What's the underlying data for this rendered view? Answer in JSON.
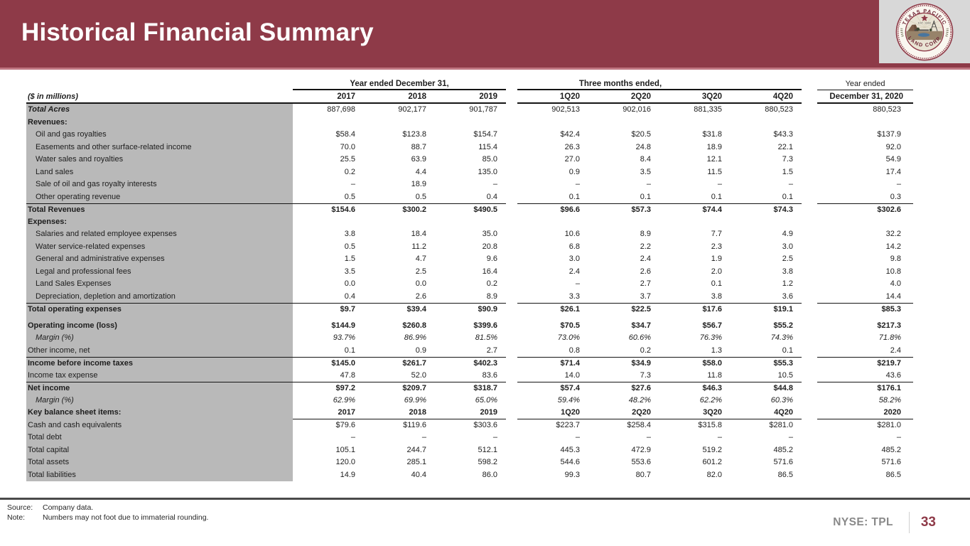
{
  "header": {
    "title": "Historical Financial Summary",
    "logo": {
      "arc_top": "TEXAS PACIFIC",
      "arc_bottom": "LAND CORP",
      "est": "EST. 1888"
    }
  },
  "table": {
    "units_label": "($ in millions)",
    "groups": [
      {
        "label": "Year ended December 31,",
        "cols": [
          "2017",
          "2018",
          "2019"
        ]
      },
      {
        "label": "Three months ended,",
        "cols": [
          "1Q20",
          "2Q20",
          "3Q20",
          "4Q20"
        ]
      },
      {
        "label_line1": "Year ended",
        "label_line2": "December 31, 2020"
      }
    ],
    "rows": [
      {
        "type": "acres",
        "label": "Total Acres",
        "values": [
          "887,698",
          "902,177",
          "901,787",
          "902,513",
          "902,016",
          "881,335",
          "880,523",
          "880,523"
        ]
      },
      {
        "type": "section",
        "label": "Revenues:",
        "values": [
          "",
          "",
          "",
          "",
          "",
          "",
          "",
          ""
        ]
      },
      {
        "type": "item",
        "label": "Oil and gas royalties",
        "values": [
          "$58.4",
          "$123.8",
          "$154.7",
          "$42.4",
          "$20.5",
          "$31.8",
          "$43.3",
          "$137.9"
        ]
      },
      {
        "type": "item",
        "label": "Easements and other surface-related income",
        "values": [
          "70.0",
          "88.7",
          "115.4",
          "26.3",
          "24.8",
          "18.9",
          "22.1",
          "92.0"
        ]
      },
      {
        "type": "item",
        "label": "Water sales and royalties",
        "values": [
          "25.5",
          "63.9",
          "85.0",
          "27.0",
          "8.4",
          "12.1",
          "7.3",
          "54.9"
        ]
      },
      {
        "type": "item",
        "label": "Land sales",
        "values": [
          "0.2",
          "4.4",
          "135.0",
          "0.9",
          "3.5",
          "11.5",
          "1.5",
          "17.4"
        ]
      },
      {
        "type": "item",
        "label": "Sale of oil and gas royalty interests",
        "values": [
          "–",
          "18.9",
          "–",
          "–",
          "–",
          "–",
          "–",
          "–"
        ]
      },
      {
        "type": "item",
        "label": "Other operating revenue",
        "values": [
          "0.5",
          "0.5",
          "0.4",
          "0.1",
          "0.1",
          "0.1",
          "0.1",
          "0.3"
        ]
      },
      {
        "type": "total",
        "label": "Total Revenues",
        "values": [
          "$154.6",
          "$300.2",
          "$490.5",
          "$96.6",
          "$57.3",
          "$74.4",
          "$74.3",
          "$302.6"
        ]
      },
      {
        "type": "section",
        "label": "Expenses:",
        "values": [
          "",
          "",
          "",
          "",
          "",
          "",
          "",
          ""
        ]
      },
      {
        "type": "item",
        "label": "Salaries and related employee expenses",
        "values": [
          "3.8",
          "18.4",
          "35.0",
          "10.6",
          "8.9",
          "7.7",
          "4.9",
          "32.2"
        ]
      },
      {
        "type": "item",
        "label": "Water service-related expenses",
        "values": [
          "0.5",
          "11.2",
          "20.8",
          "6.8",
          "2.2",
          "2.3",
          "3.0",
          "14.2"
        ]
      },
      {
        "type": "item",
        "label": "General and administrative expenses",
        "values": [
          "1.5",
          "4.7",
          "9.6",
          "3.0",
          "2.4",
          "1.9",
          "2.5",
          "9.8"
        ]
      },
      {
        "type": "item",
        "label": "Legal and professional fees",
        "values": [
          "3.5",
          "2.5",
          "16.4",
          "2.4",
          "2.6",
          "2.0",
          "3.8",
          "10.8"
        ]
      },
      {
        "type": "item",
        "label": "Land Sales Expenses",
        "values": [
          "0.0",
          "0.0",
          "0.2",
          "–",
          "2.7",
          "0.1",
          "1.2",
          "4.0"
        ]
      },
      {
        "type": "item",
        "label": "Depreciation, depletion and amortization",
        "values": [
          "0.4",
          "2.6",
          "8.9",
          "3.3",
          "3.7",
          "3.8",
          "3.6",
          "14.4"
        ]
      },
      {
        "type": "total",
        "label": "Total operating expenses",
        "values": [
          "$9.7",
          "$39.4",
          "$90.9",
          "$26.1",
          "$22.5",
          "$17.6",
          "$19.1",
          "$85.3"
        ]
      },
      {
        "type": "spacer"
      },
      {
        "type": "bold",
        "label": "Operating income (loss)",
        "values": [
          "$144.9",
          "$260.8",
          "$399.6",
          "$70.5",
          "$34.7",
          "$56.7",
          "$55.2",
          "$217.3"
        ]
      },
      {
        "type": "margin",
        "label": "Margin (%)",
        "values": [
          "93.7%",
          "86.9%",
          "81.5%",
          "73.0%",
          "60.6%",
          "76.3%",
          "74.3%",
          "71.8%"
        ]
      },
      {
        "type": "plain",
        "label": "Other income, net",
        "values": [
          "0.1",
          "0.9",
          "2.7",
          "0.8",
          "0.2",
          "1.3",
          "0.1",
          "2.4"
        ]
      },
      {
        "type": "total",
        "label": "Income before income taxes",
        "values": [
          "$145.0",
          "$261.7",
          "$402.3",
          "$71.4",
          "$34.9",
          "$58.0",
          "$55.3",
          "$219.7"
        ]
      },
      {
        "type": "plain",
        "label": "Income tax expense",
        "values": [
          "47.8",
          "52.0",
          "83.6",
          "14.0",
          "7.3",
          "11.8",
          "10.5",
          "43.6"
        ]
      },
      {
        "type": "total",
        "label": "Net income",
        "values": [
          "$97.2",
          "$209.7",
          "$318.7",
          "$57.4",
          "$27.6",
          "$46.3",
          "$44.8",
          "$176.1"
        ]
      },
      {
        "type": "margin",
        "label": "Margin (%)",
        "values": [
          "62.9%",
          "69.9%",
          "65.0%",
          "59.4%",
          "48.2%",
          "62.2%",
          "60.3%",
          "58.2%"
        ]
      },
      {
        "type": "subheader",
        "label": "Key balance sheet items:",
        "values": [
          "2017",
          "2018",
          "2019",
          "1Q20",
          "2Q20",
          "3Q20",
          "4Q20",
          "2020"
        ]
      },
      {
        "type": "plain",
        "label": "Cash and cash equivalents",
        "values": [
          "$79.6",
          "$119.6",
          "$303.6",
          "$223.7",
          "$258.4",
          "$315.8",
          "$281.0",
          "$281.0"
        ]
      },
      {
        "type": "plain",
        "label": "Total debt",
        "values": [
          "–",
          "–",
          "–",
          "–",
          "–",
          "–",
          "–",
          "–"
        ]
      },
      {
        "type": "plain",
        "label": "Total capital",
        "values": [
          "105.1",
          "244.7",
          "512.1",
          "445.3",
          "472.9",
          "519.2",
          "485.2",
          "485.2"
        ]
      },
      {
        "type": "plain",
        "label": "Total assets",
        "values": [
          "120.0",
          "285.1",
          "598.2",
          "544.6",
          "553.6",
          "601.2",
          "571.6",
          "571.6"
        ]
      },
      {
        "type": "plain",
        "label": "Total liabilities",
        "values": [
          "14.9",
          "40.4",
          "86.0",
          "99.3",
          "80.7",
          "82.0",
          "86.5",
          "86.5"
        ]
      }
    ]
  },
  "footer": {
    "source_label": "Source:",
    "source_text": "Company data.",
    "note_label": "Note:",
    "note_text": "Numbers may not foot due to immaterial rounding.",
    "ticker": "NYSE: TPL",
    "page": "33"
  },
  "colors": {
    "brand_maroon": "#8e3a48",
    "header_underline": "#bf7681",
    "logo_box_gray": "#d8d8d8",
    "label_column_gray": "#b9b9b9",
    "footer_rule_gray": "#4a4a4a",
    "ticker_gray": "#898989"
  }
}
